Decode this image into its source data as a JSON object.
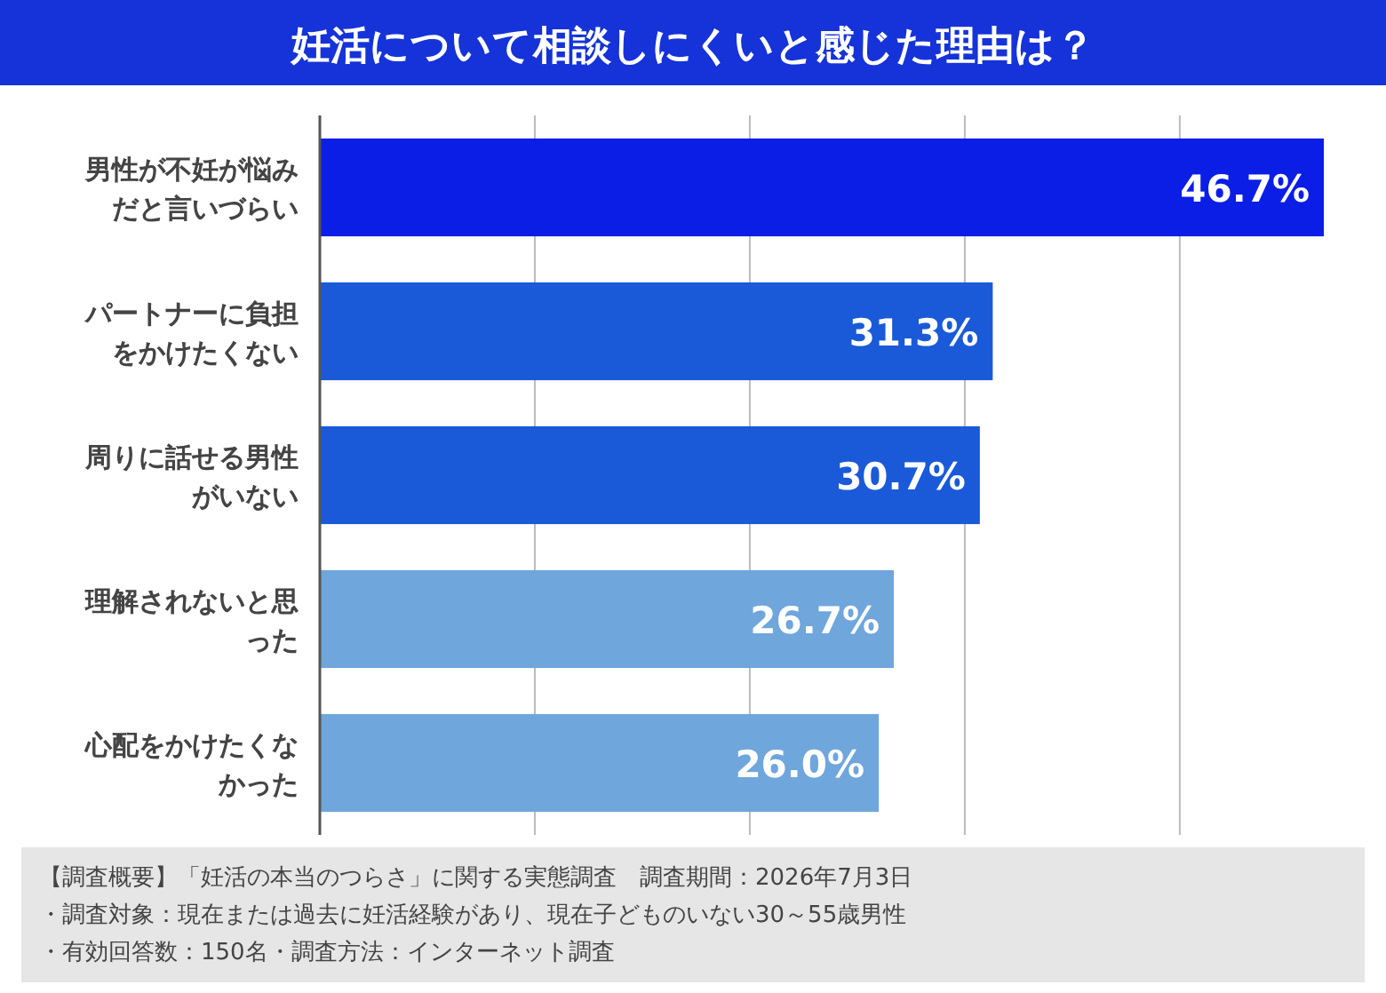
{
  "chart_data": {
    "type": "bar",
    "orientation": "horizontal",
    "title": "妊活について相談しにくいと感じた理由は？",
    "categories": [
      "男性が不妊が悩みだと言いづらい",
      "パートナーに負担をかけたくない",
      "周りに話せる男性がいない",
      "理解されないと思った",
      "心配をかけたくなかった"
    ],
    "values": [
      46.7,
      31.3,
      30.7,
      26.7,
      26.0
    ],
    "colors": [
      "#0a1ee6",
      "#1a5ad8",
      "#1a5ad8",
      "#6fa6dc",
      "#6fa6dc"
    ],
    "value_labels": [
      "46.7%",
      "31.3%",
      "30.7%",
      "26.7%",
      "26.0%"
    ],
    "xticks": [
      {
        "value": 0,
        "label": null
      },
      {
        "value": 10,
        "label": null
      },
      {
        "value": 20,
        "label": null
      },
      {
        "value": 30,
        "label": null
      },
      {
        "value": 40,
        "label": null
      }
    ],
    "grid": "x",
    "annotations": [
      "【調査概要】「妊活の本当のつらさ」に関する実態調査　調査期間：2026年7月3日",
      "・調査対象：現在または過去に妊活経験があり、現在子どものいない30～55歳男性",
      "・有効回答数：150名・調査方法：インターネット調査"
    ]
  }
}
